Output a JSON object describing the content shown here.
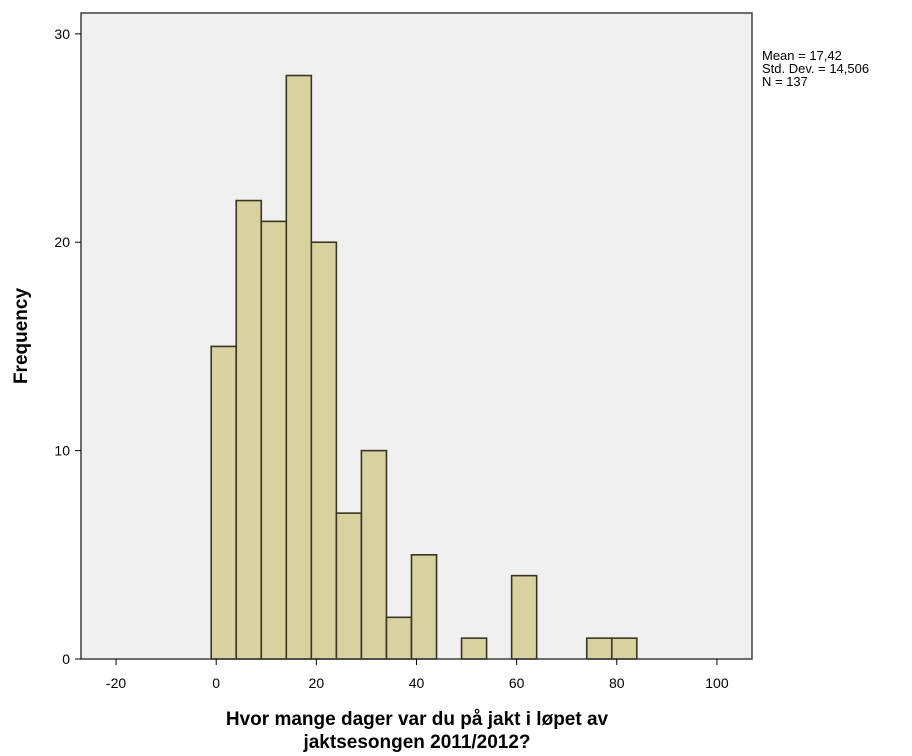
{
  "chart_data": {
    "type": "bar",
    "subtype": "histogram",
    "xlabel_lines": [
      "Hvor mange dager var du på jakt i løpet av",
      "jaktsesongen 2011/2012?"
    ],
    "ylabel": "Frequency",
    "xlim": [
      -27,
      107
    ],
    "ylim": [
      0,
      31
    ],
    "x_ticks": [
      -20,
      0,
      20,
      40,
      60,
      80,
      100
    ],
    "y_ticks": [
      0,
      10,
      20,
      30
    ],
    "bin_width": 5,
    "bins": [
      {
        "start": -1,
        "end": 4,
        "count": 15
      },
      {
        "start": 4,
        "end": 9,
        "count": 22
      },
      {
        "start": 9,
        "end": 14,
        "count": 21
      },
      {
        "start": 14,
        "end": 19,
        "count": 28
      },
      {
        "start": 19,
        "end": 24,
        "count": 20
      },
      {
        "start": 24,
        "end": 29,
        "count": 7
      },
      {
        "start": 29,
        "end": 34,
        "count": 10
      },
      {
        "start": 34,
        "end": 39,
        "count": 2
      },
      {
        "start": 39,
        "end": 44,
        "count": 5
      },
      {
        "start": 44,
        "end": 49,
        "count": 0
      },
      {
        "start": 49,
        "end": 54,
        "count": 1
      },
      {
        "start": 54,
        "end": 59,
        "count": 0
      },
      {
        "start": 59,
        "end": 64,
        "count": 4
      },
      {
        "start": 64,
        "end": 69,
        "count": 0
      },
      {
        "start": 69,
        "end": 74,
        "count": 0
      },
      {
        "start": 74,
        "end": 79,
        "count": 1
      },
      {
        "start": 79,
        "end": 84,
        "count": 1
      }
    ],
    "stats": [
      "Mean = 17,42",
      "Std. Dev. = 14,506",
      "N = 137"
    ],
    "grid": false,
    "legend": "none",
    "colors": {
      "bar_fill": "#d8d1a0",
      "bar_stroke": "#3a3522",
      "plot_background": "#f0f0f0",
      "frame": "#404040"
    }
  }
}
